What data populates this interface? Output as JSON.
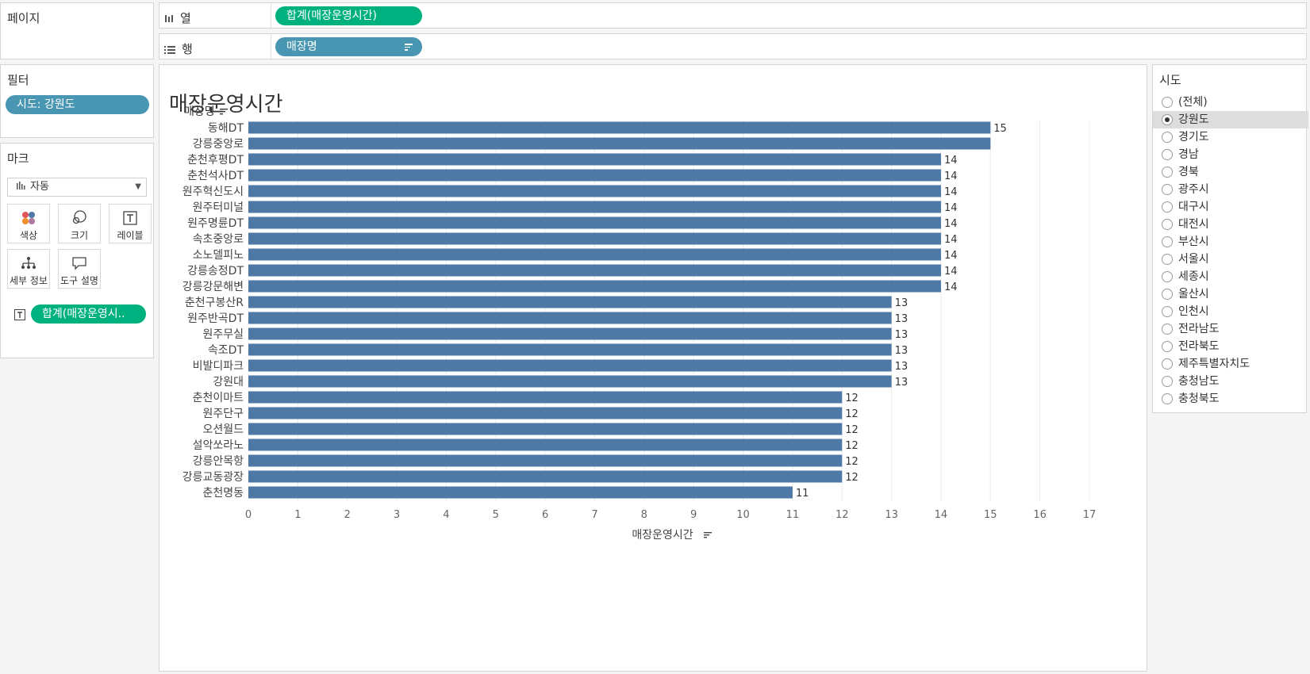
{
  "pages_panel": {
    "title": "페이지"
  },
  "shelves": {
    "columns": {
      "label": "열",
      "pill": "합계(매장운영시간)"
    },
    "rows": {
      "label": "행",
      "pill": "매장명"
    }
  },
  "filters_panel": {
    "title": "필터",
    "pill": "시도: 강원도"
  },
  "marks_panel": {
    "title": "마크",
    "mark_type": "자동",
    "tiles": [
      {
        "label": "색상",
        "icon": "color-icon"
      },
      {
        "label": "크기",
        "icon": "size-icon"
      },
      {
        "label": "레이블",
        "icon": "label-icon"
      },
      {
        "label": "세부 정보",
        "icon": "detail-icon"
      },
      {
        "label": "도구 설명",
        "icon": "tooltip-icon"
      }
    ],
    "label_pill": "합계(매장운영시..",
    "label_pill_icon": "text-icon"
  },
  "view": {
    "title": "매장운영시간",
    "row_header": "매장명",
    "bar_color": "#4e79a7"
  },
  "chart_data": {
    "type": "bar",
    "orientation": "horizontal",
    "categories": [
      "동해DT",
      "강릉중앙로",
      "춘천후평DT",
      "춘천석사DT",
      "원주혁신도시",
      "원주터미널",
      "원주명륜DT",
      "속초중앙로",
      "소노델피노",
      "강릉송정DT",
      "강릉강문해변",
      "춘천구봉산R",
      "원주반곡DT",
      "원주무실",
      "속조DT",
      "비발디파크",
      "강원대",
      "춘천이마트",
      "원주단구",
      "오션월드",
      "설악쏘라노",
      "강릉안목항",
      "강릉교동광장",
      "춘천명동"
    ],
    "values": [
      15,
      15,
      14,
      14,
      14,
      14,
      14,
      14,
      14,
      14,
      14,
      13,
      13,
      13,
      13,
      13,
      13,
      12,
      12,
      12,
      12,
      12,
      12,
      11
    ],
    "data_labels": [
      "15",
      "",
      "14",
      "14",
      "14",
      "14",
      "14",
      "14",
      "14",
      "14",
      "14",
      "13",
      "13",
      "13",
      "13",
      "13",
      "13",
      "12",
      "12",
      "12",
      "12",
      "12",
      "12",
      "11"
    ],
    "xlabel": "매장운영시간",
    "ylabel": "매장명",
    "xlim": [
      0,
      17
    ],
    "x_ticks": [
      "0",
      "1",
      "2",
      "3",
      "4",
      "5",
      "6",
      "7",
      "8",
      "9",
      "10",
      "11",
      "12",
      "13",
      "14",
      "15",
      "16",
      "17"
    ],
    "grid": true,
    "legend": "none"
  },
  "filter_card": {
    "title": "시도",
    "selected": "강원도",
    "options": [
      "(전체)",
      "강원도",
      "경기도",
      "경남",
      "경북",
      "광주시",
      "대구시",
      "대전시",
      "부산시",
      "서울시",
      "세종시",
      "울산시",
      "인천시",
      "전라남도",
      "전라북도",
      "제주특별자치도",
      "충청남도",
      "충청북도"
    ]
  }
}
